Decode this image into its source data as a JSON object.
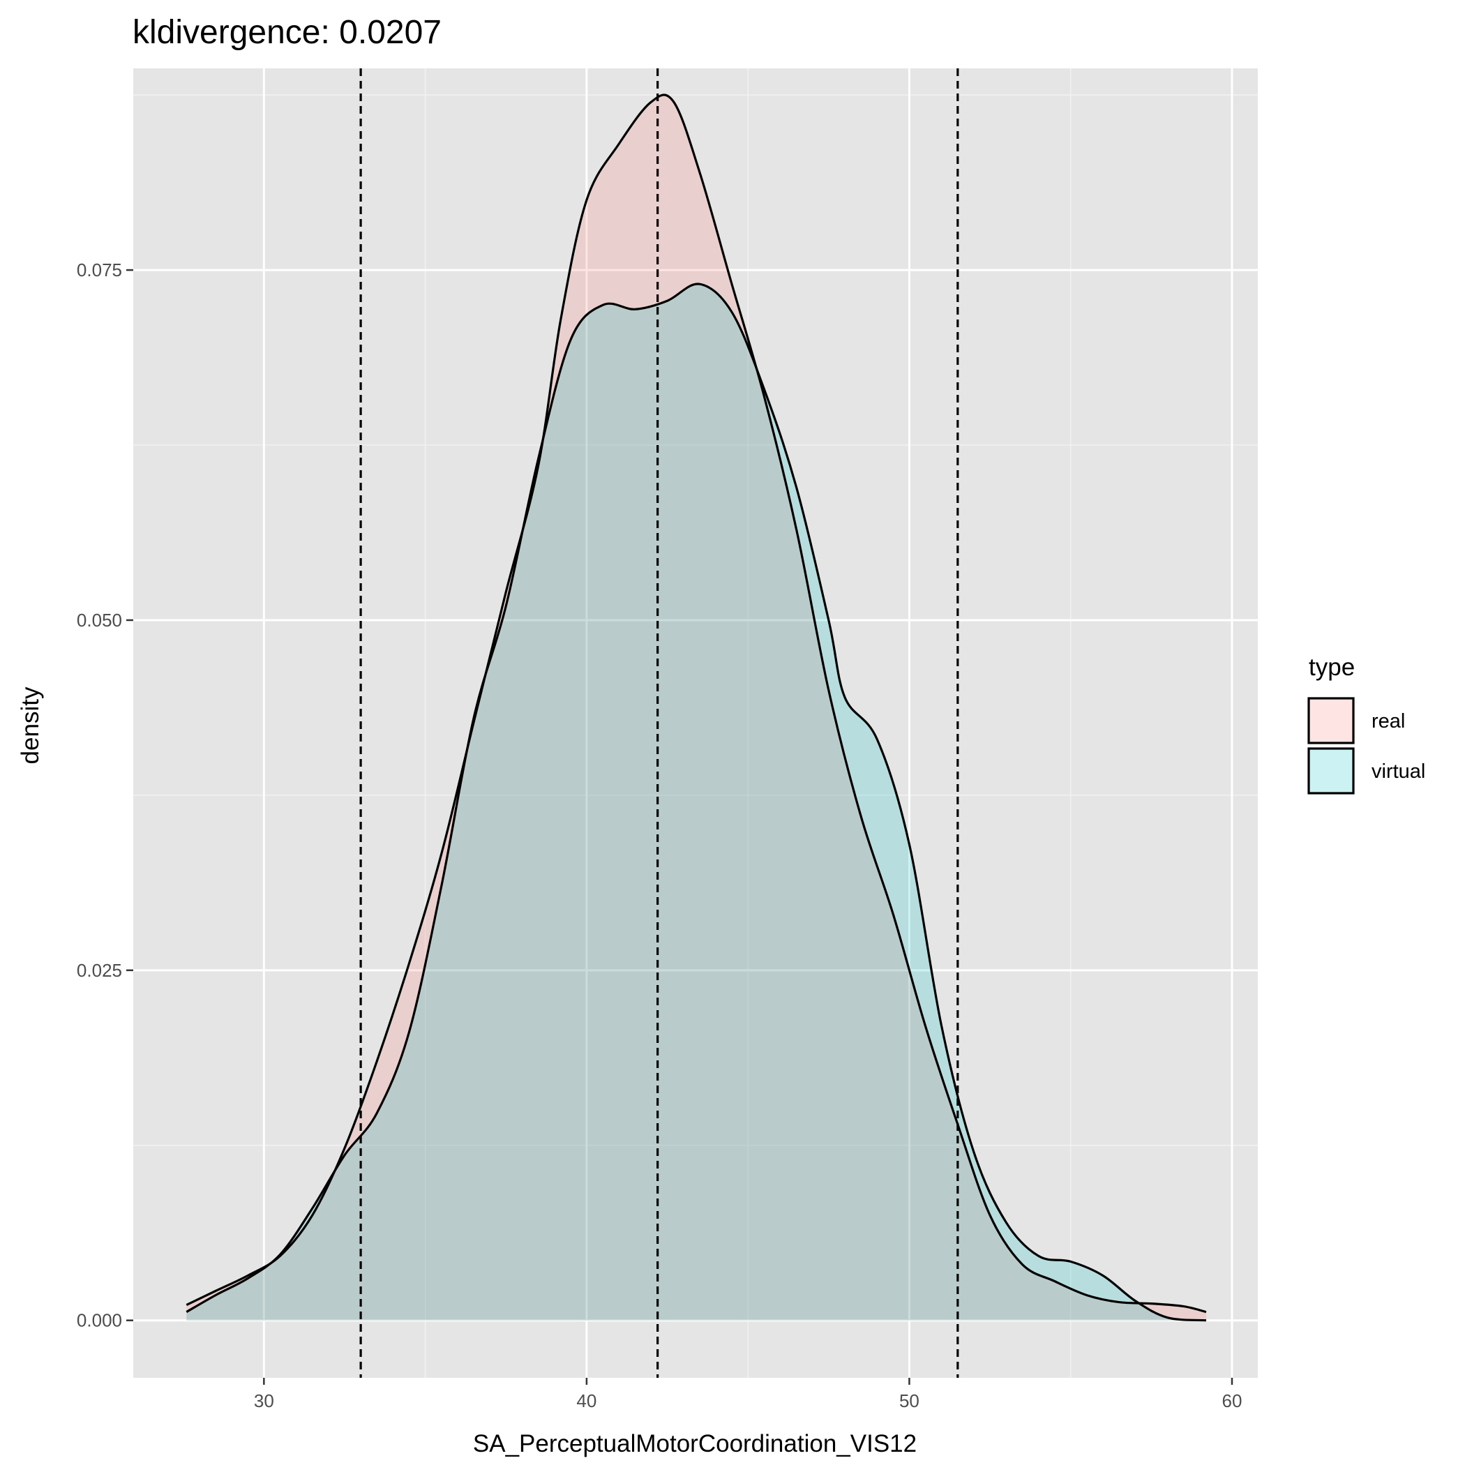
{
  "chart_data": {
    "type": "area",
    "title": "kldivergence: 0.0207",
    "xlabel": "SA_PerceptualMotorCoordination_VIS12",
    "ylabel": "density",
    "xlim": [
      25.95,
      60.8
    ],
    "ylim": [
      -0.0041,
      0.0894
    ],
    "x_ticks": [
      30,
      40,
      50,
      60
    ],
    "y_ticks": [
      0.0,
      0.025,
      0.05,
      0.075
    ],
    "x_tick_labels": [
      "30",
      "40",
      "50",
      "60"
    ],
    "y_tick_labels": [
      "0.000",
      "0.025",
      "0.050",
      "0.075"
    ],
    "grid": true,
    "vlines": [
      33.0,
      42.2,
      51.5
    ],
    "legend": {
      "title": "type",
      "position": "right"
    },
    "series": [
      {
        "name": "real",
        "color": "#F8766D",
        "points": [
          [
            27.6,
            0.0011
          ],
          [
            28.5,
            0.0021
          ],
          [
            29.5,
            0.0032
          ],
          [
            30.5,
            0.0046
          ],
          [
            31.5,
            0.0075
          ],
          [
            32.5,
            0.0123
          ],
          [
            33.5,
            0.0185
          ],
          [
            34.5,
            0.0255
          ],
          [
            35.5,
            0.0333
          ],
          [
            36.5,
            0.0427
          ],
          [
            37.5,
            0.052
          ],
          [
            38.5,
            0.061
          ],
          [
            39.2,
            0.0715
          ],
          [
            40.0,
            0.08
          ],
          [
            41.0,
            0.084
          ],
          [
            42.0,
            0.087
          ],
          [
            42.7,
            0.087
          ],
          [
            43.5,
            0.082
          ],
          [
            44.5,
            0.074
          ],
          [
            45.5,
            0.066
          ],
          [
            46.5,
            0.0565
          ],
          [
            47.5,
            0.045
          ],
          [
            48.5,
            0.036
          ],
          [
            49.5,
            0.029
          ],
          [
            50.5,
            0.021
          ],
          [
            51.5,
            0.014
          ],
          [
            52.5,
            0.0075
          ],
          [
            53.5,
            0.004
          ],
          [
            54.5,
            0.0028
          ],
          [
            55.5,
            0.0018
          ],
          [
            56.5,
            0.0013
          ],
          [
            57.5,
            0.0012
          ],
          [
            58.5,
            0.001
          ],
          [
            59.2,
            0.0006
          ]
        ]
      },
      {
        "name": "virtual",
        "color": "#00BFC4",
        "points": [
          [
            27.6,
            0.0006
          ],
          [
            28.5,
            0.0018
          ],
          [
            29.5,
            0.003
          ],
          [
            30.5,
            0.0047
          ],
          [
            31.5,
            0.008
          ],
          [
            32.5,
            0.0118
          ],
          [
            33.5,
            0.0148
          ],
          [
            34.5,
            0.0206
          ],
          [
            35.5,
            0.031
          ],
          [
            36.5,
            0.043
          ],
          [
            37.5,
            0.051
          ],
          [
            38.5,
            0.0615
          ],
          [
            39.5,
            0.07
          ],
          [
            40.5,
            0.0725
          ],
          [
            41.5,
            0.0722
          ],
          [
            42.5,
            0.0728
          ],
          [
            43.5,
            0.074
          ],
          [
            44.5,
            0.072
          ],
          [
            45.5,
            0.0665
          ],
          [
            46.5,
            0.0595
          ],
          [
            47.5,
            0.05
          ],
          [
            48.0,
            0.0445
          ],
          [
            49.0,
            0.0415
          ],
          [
            50.0,
            0.034
          ],
          [
            51.0,
            0.021
          ],
          [
            52.0,
            0.012
          ],
          [
            53.0,
            0.007
          ],
          [
            54.0,
            0.0046
          ],
          [
            55.0,
            0.0042
          ],
          [
            56.0,
            0.0032
          ],
          [
            57.0,
            0.0014
          ],
          [
            58.0,
            0.0002
          ],
          [
            59.2,
            0.0
          ]
        ]
      }
    ]
  }
}
